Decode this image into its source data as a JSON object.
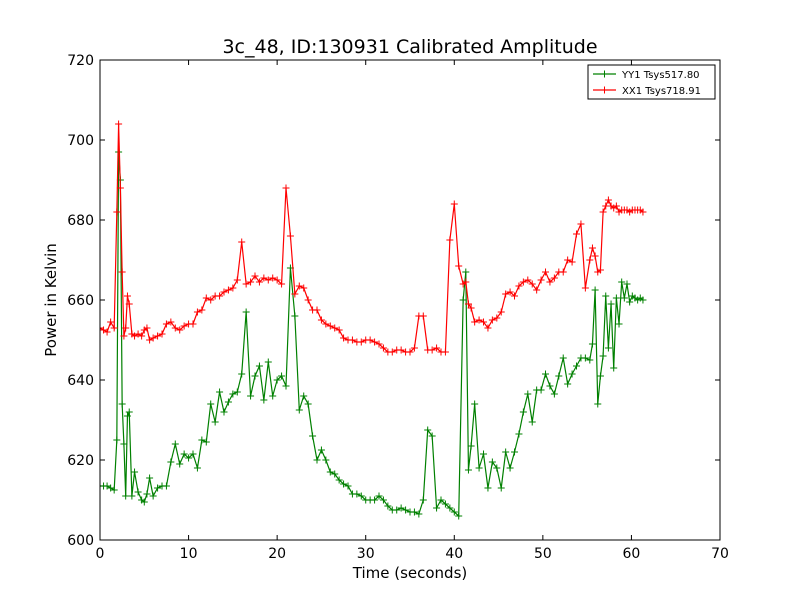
{
  "chart_data": {
    "type": "line",
    "title": "3c_48, ID:130931 Calibrated Amplitude",
    "xlabel": "Time (seconds)",
    "ylabel": "Power in Kelvin",
    "xlim": [
      0,
      70
    ],
    "ylim": [
      600,
      720
    ],
    "xticks": [
      0,
      10,
      20,
      30,
      40,
      50,
      60,
      70
    ],
    "yticks": [
      600,
      620,
      640,
      660,
      680,
      700,
      720
    ],
    "grid": false,
    "legend_position": "top-right",
    "marker": "plus",
    "series": [
      {
        "name": "YY1 Tsys517.80",
        "color": "#008000",
        "x": [
          0.0,
          0.4,
          0.8,
          1.2,
          1.6,
          1.9,
          2.1,
          2.3,
          2.5,
          2.7,
          2.9,
          3.1,
          3.3,
          3.6,
          3.9,
          4.3,
          4.7,
          5.0,
          5.3,
          5.6,
          6.0,
          6.5,
          7.0,
          7.5,
          8.0,
          8.5,
          9.0,
          9.5,
          10.0,
          10.5,
          11.0,
          11.5,
          12.0,
          12.5,
          13.0,
          13.5,
          14.0,
          14.5,
          15.0,
          15.5,
          16.0,
          16.5,
          17.0,
          17.5,
          18.0,
          18.5,
          19.0,
          19.5,
          20.0,
          20.5,
          21.0,
          21.5,
          22.0,
          22.5,
          23.0,
          23.5,
          24.0,
          24.5,
          25.0,
          25.5,
          26.0,
          26.5,
          27.0,
          27.5,
          28.0,
          28.5,
          29.0,
          29.5,
          30.0,
          30.5,
          31.0,
          31.5,
          32.0,
          32.5,
          33.0,
          33.5,
          34.0,
          34.5,
          35.0,
          35.5,
          36.0,
          36.5,
          37.0,
          37.5,
          38.0,
          38.5,
          39.0,
          39.5,
          40.0,
          40.5,
          41.0,
          41.3,
          41.6,
          41.9,
          42.3,
          42.8,
          43.3,
          43.8,
          44.3,
          44.8,
          45.3,
          45.8,
          46.3,
          46.8,
          47.3,
          47.8,
          48.3,
          48.8,
          49.3,
          49.8,
          50.3,
          50.8,
          51.3,
          51.8,
          52.3,
          52.8,
          53.3,
          53.8,
          54.3,
          54.8,
          55.3,
          55.6,
          55.9,
          56.2,
          56.5,
          56.8,
          57.1,
          57.4,
          57.7,
          58.0,
          58.3,
          58.6,
          58.9,
          59.2,
          59.5,
          59.8,
          60.1,
          60.4,
          60.7,
          61.0,
          61.3
        ],
        "y": [
          613.5,
          613.5,
          613.5,
          613.0,
          612.5,
          625.0,
          697.0,
          690.0,
          634.0,
          624.0,
          611.0,
          631.0,
          632.0,
          611.0,
          617.0,
          612.0,
          610.0,
          609.5,
          611.5,
          615.5,
          611.0,
          613.0,
          613.5,
          613.5,
          619.5,
          624.0,
          619.0,
          621.5,
          620.5,
          621.5,
          618.0,
          625.0,
          624.5,
          634.0,
          629.5,
          637.0,
          632.0,
          634.5,
          636.5,
          637.0,
          641.5,
          657.0,
          636.0,
          641.0,
          643.5,
          635.0,
          644.5,
          636.0,
          640.0,
          641.0,
          638.5,
          668.0,
          656.0,
          632.5,
          636.0,
          634.0,
          626.0,
          620.0,
          622.5,
          620.0,
          617.0,
          616.5,
          615.0,
          614.0,
          613.5,
          611.5,
          611.5,
          611.0,
          610.0,
          610.0,
          610.0,
          611.0,
          610.0,
          608.5,
          607.5,
          607.5,
          608.0,
          607.5,
          607.0,
          607.0,
          606.5,
          610.0,
          627.5,
          626.0,
          608.0,
          610.0,
          609.0,
          608.0,
          607.0,
          606.0,
          660.0,
          667.0,
          617.5,
          623.5,
          634.0,
          618.0,
          621.5,
          613.0,
          619.5,
          618.0,
          613.0,
          622.0,
          618.0,
          622.0,
          626.5,
          632.0,
          636.5,
          629.5,
          637.5,
          637.5,
          641.5,
          638.5,
          636.5,
          641.0,
          645.5,
          639.0,
          641.5,
          643.5,
          645.5,
          645.5,
          645.0,
          649.0,
          662.5,
          634.0,
          641.0,
          646.0,
          661.0,
          648.0,
          659.0,
          643.0,
          660.5,
          654.0,
          664.5,
          660.5,
          664.0,
          659.5,
          661.0,
          660.5,
          660.0,
          660.5,
          660.0
        ]
      },
      {
        "name": "XX1 Tsys718.91",
        "color": "#ff0000",
        "x": [
          0.0,
          0.4,
          0.8,
          1.2,
          1.6,
          1.9,
          2.1,
          2.3,
          2.5,
          2.7,
          2.9,
          3.1,
          3.3,
          3.6,
          3.9,
          4.3,
          4.7,
          5.0,
          5.3,
          5.6,
          6.0,
          6.5,
          7.0,
          7.5,
          8.0,
          8.5,
          9.0,
          9.5,
          10.0,
          10.5,
          11.0,
          11.5,
          12.0,
          12.5,
          13.0,
          13.5,
          14.0,
          14.5,
          15.0,
          15.5,
          16.0,
          16.5,
          17.0,
          17.5,
          18.0,
          18.5,
          19.0,
          19.5,
          20.0,
          20.5,
          21.0,
          21.5,
          22.0,
          22.5,
          23.0,
          23.5,
          24.0,
          24.5,
          25.0,
          25.5,
          26.0,
          26.5,
          27.0,
          27.5,
          28.0,
          28.5,
          29.0,
          29.5,
          30.0,
          30.5,
          31.0,
          31.5,
          32.0,
          32.5,
          33.0,
          33.5,
          34.0,
          34.5,
          35.0,
          35.5,
          36.0,
          36.5,
          37.0,
          37.5,
          38.0,
          38.5,
          39.0,
          39.5,
          40.0,
          40.5,
          41.0,
          41.3,
          41.6,
          41.9,
          42.3,
          42.8,
          43.3,
          43.8,
          44.3,
          44.8,
          45.3,
          45.8,
          46.3,
          46.8,
          47.3,
          47.8,
          48.3,
          48.8,
          49.3,
          49.8,
          50.3,
          50.8,
          51.3,
          51.8,
          52.3,
          52.8,
          53.3,
          53.8,
          54.3,
          54.8,
          55.3,
          55.6,
          55.9,
          56.2,
          56.5,
          56.8,
          57.1,
          57.4,
          57.7,
          58.0,
          58.3,
          58.6,
          58.9,
          59.2,
          59.5,
          59.8,
          60.1,
          60.4,
          60.7,
          61.0,
          61.3
        ],
        "y": [
          653.0,
          652.5,
          652.0,
          654.5,
          653.0,
          682.0,
          704.0,
          688.0,
          667.0,
          651.0,
          653.0,
          661.0,
          659.0,
          651.5,
          651.0,
          651.5,
          651.0,
          652.5,
          653.0,
          650.0,
          650.5,
          651.0,
          651.5,
          654.0,
          654.5,
          653.0,
          652.5,
          653.5,
          654.0,
          654.0,
          657.0,
          657.5,
          660.5,
          660.0,
          661.0,
          661.0,
          662.0,
          662.5,
          663.0,
          665.0,
          674.5,
          664.0,
          664.5,
          666.0,
          664.5,
          665.5,
          665.0,
          665.5,
          665.0,
          664.0,
          688.0,
          676.0,
          661.5,
          663.5,
          663.0,
          660.0,
          657.5,
          657.5,
          655.0,
          654.0,
          653.5,
          653.0,
          652.5,
          650.5,
          650.0,
          650.0,
          649.5,
          649.5,
          650.0,
          650.0,
          649.5,
          649.0,
          648.0,
          647.0,
          647.0,
          647.5,
          647.5,
          647.0,
          647.0,
          648.0,
          656.0,
          656.0,
          647.5,
          647.5,
          648.0,
          647.0,
          647.0,
          675.0,
          684.0,
          668.5,
          664.0,
          664.5,
          659.0,
          658.0,
          654.5,
          655.0,
          654.5,
          653.0,
          655.0,
          655.5,
          657.0,
          661.5,
          662.0,
          661.0,
          663.5,
          664.5,
          665.0,
          664.0,
          662.5,
          665.0,
          667.0,
          664.5,
          665.5,
          667.0,
          667.0,
          670.0,
          669.5,
          676.5,
          679.0,
          663.0,
          670.0,
          673.0,
          671.0,
          667.0,
          667.5,
          682.0,
          683.5,
          685.0,
          683.5,
          683.0,
          683.5,
          682.0,
          682.5,
          682.5,
          682.5,
          682.0,
          682.5,
          682.5,
          682.5,
          682.5,
          682.0
        ]
      }
    ]
  }
}
